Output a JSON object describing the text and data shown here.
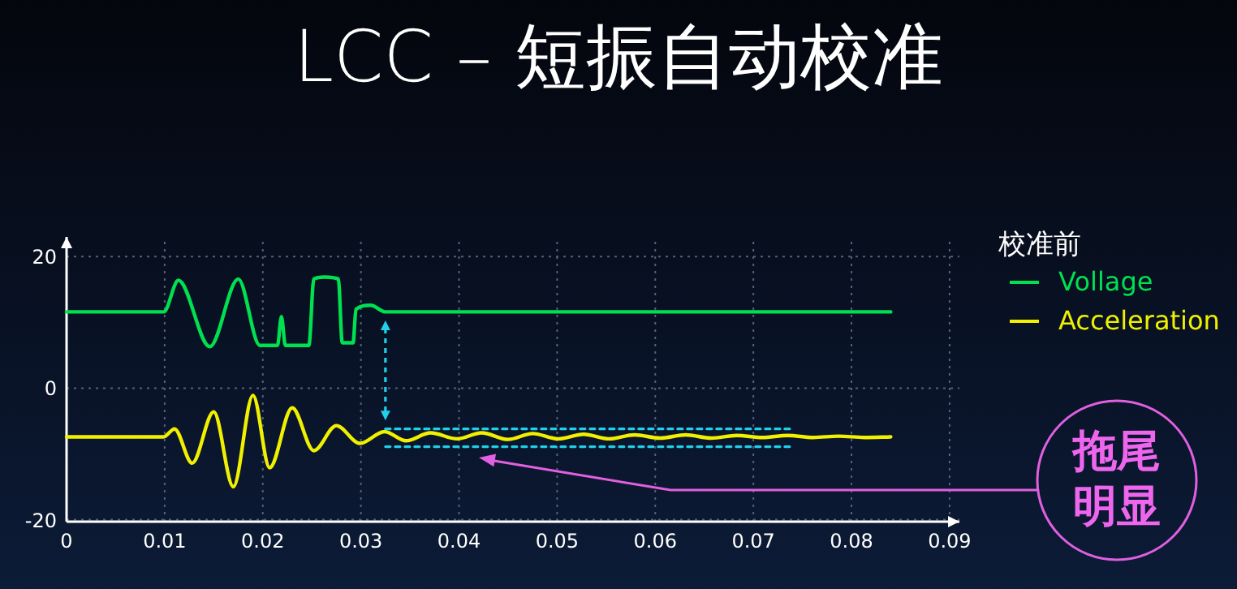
{
  "chart_data": {
    "type": "line",
    "title": "LCC – 短振自动校准",
    "legend_title": "校准前",
    "legend": "top right",
    "grid": true,
    "marker": "none",
    "line_style": "solid",
    "xlim": [
      0,
      0.091
    ],
    "ylim": [
      -20.3,
      23
    ],
    "xticks": [
      0,
      0.01,
      0.02,
      0.03,
      0.04,
      0.05,
      0.06,
      0.07,
      0.08,
      0.09
    ],
    "yticks": [
      -20,
      0,
      20
    ],
    "annotations": [
      "拖尾明显"
    ],
    "series": [
      {
        "name": "Vollage",
        "color": "#00e050",
        "x": [
          0,
          0.0099,
          0.0114,
          0.0146,
          0.0175,
          0.0197,
          0.0215,
          0.0219,
          0.0223,
          0.0247,
          0.0252,
          0.0263,
          0.0277,
          0.0281,
          0.0292,
          0.0295,
          0.031,
          0.0325,
          0.084
        ],
        "values": [
          11.6,
          11.6,
          16.4,
          6.3,
          16.6,
          6.5,
          6.5,
          10.9,
          6.5,
          6.5,
          16.6,
          16.9,
          16.6,
          6.9,
          6.9,
          12.0,
          12.6,
          11.6,
          11.6
        ]
      },
      {
        "name": "Acceleration",
        "color": "#f0f000",
        "x": [
          0,
          0.0099,
          0.011,
          0.0128,
          0.015,
          0.017,
          0.019,
          0.0207,
          0.023,
          0.0252,
          0.0275,
          0.0299,
          0.0324,
          0.0346,
          0.0371,
          0.0398,
          0.0423,
          0.045,
          0.0475,
          0.0501,
          0.0527,
          0.0553,
          0.0579,
          0.0605,
          0.0631,
          0.0657,
          0.0683,
          0.0709,
          0.0735,
          0.0761,
          0.0787,
          0.0813,
          0.084
        ],
        "values": [
          -7.4,
          -7.4,
          -6.2,
          -11.4,
          -3.6,
          -15.0,
          -1.1,
          -12.1,
          -3.0,
          -9.5,
          -5.7,
          -8.4,
          -6.6,
          -8.0,
          -6.8,
          -7.7,
          -6.8,
          -7.8,
          -6.9,
          -7.7,
          -7.0,
          -7.7,
          -7.1,
          -7.6,
          -7.1,
          -7.6,
          -7.2,
          -7.5,
          -7.2,
          -7.5,
          -7.3,
          -7.5,
          -7.4
        ]
      },
      {
        "color": "#20d0e8",
        "line_style": "dashed",
        "x": [
          0.0325,
          0.074
        ],
        "values": [
          -6.2,
          -6.2
        ]
      },
      {
        "color": "#20d0e8",
        "line_style": "dashed",
        "x": [
          0.0325,
          0.074
        ],
        "values": [
          -8.9,
          -8.9
        ]
      }
    ]
  }
}
